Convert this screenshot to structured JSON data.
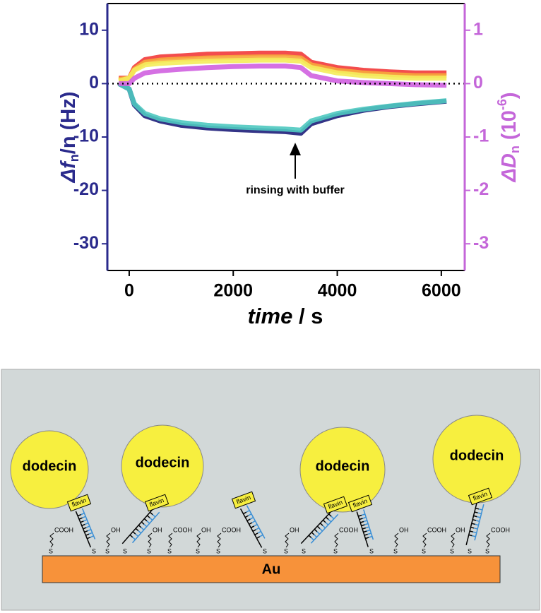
{
  "chart_data": {
    "type": "line",
    "xlabel": {
      "main": "time",
      "rest": " / s"
    },
    "ylabel": {
      "main": "Δf",
      "sub": "n",
      "rest": "/n (Hz)"
    },
    "y2label": {
      "main": "ΔD",
      "sub": "n",
      "open": " (10",
      "sup": "-6",
      "close": ")"
    },
    "annotation": "rinsing with buffer",
    "xlim": [
      -420,
      6450
    ],
    "xticks": [
      0,
      2000,
      4000,
      6000
    ],
    "ylim": [
      -35,
      15
    ],
    "yticks": [
      -30,
      -20,
      -10,
      0,
      10
    ],
    "y2lim": [
      -3.5,
      1.5
    ],
    "y2ticks": [
      -3,
      -2,
      -1,
      0,
      1
    ],
    "axis_color": "#2a2a8c",
    "axis2_color": "#c466d9",
    "reference_line": 0,
    "x": [
      -200,
      0,
      100,
      300,
      600,
      1000,
      1500,
      2000,
      2500,
      3000,
      3300,
      3500,
      4000,
      4500,
      5000,
      5500,
      6100
    ],
    "series": [
      {
        "color": "#1e1e7a",
        "values": [
          0,
          -1,
          -4,
          -6,
          -7,
          -7.8,
          -8.3,
          -8.6,
          -8.8,
          -9,
          -9.3,
          -7.5,
          -6,
          -5,
          -4.3,
          -3.8,
          -3.3
        ]
      },
      {
        "color": "#4fc9c0",
        "values": [
          0,
          -1,
          -3.8,
          -5.6,
          -6.6,
          -7.3,
          -7.8,
          -8.1,
          -8.3,
          -8.5,
          -8.7,
          -7,
          -5.6,
          -4.8,
          -4.2,
          -3.7,
          -3.2
        ]
      },
      {
        "color": "#f23a3a",
        "axis": "y2",
        "values": [
          0.1,
          0.1,
          0.3,
          0.45,
          0.5,
          0.52,
          0.55,
          0.56,
          0.57,
          0.57,
          0.55,
          0.4,
          0.3,
          0.25,
          0.22,
          0.2,
          0.2
        ]
      },
      {
        "color": "#f7a93c",
        "axis": "y2",
        "values": [
          0.08,
          0.1,
          0.27,
          0.4,
          0.44,
          0.46,
          0.48,
          0.49,
          0.5,
          0.5,
          0.48,
          0.35,
          0.25,
          0.2,
          0.17,
          0.15,
          0.15
        ]
      },
      {
        "color": "#f4ec5a",
        "axis": "y2",
        "values": [
          0.05,
          0.1,
          0.25,
          0.35,
          0.38,
          0.4,
          0.42,
          0.43,
          0.44,
          0.44,
          0.42,
          0.3,
          0.2,
          0.15,
          0.12,
          0.1,
          0.1
        ]
      },
      {
        "color": "#d061e0",
        "axis": "y2",
        "values": [
          0,
          0,
          0.1,
          0.2,
          0.24,
          0.27,
          0.3,
          0.32,
          0.33,
          0.33,
          0.3,
          0.15,
          0.05,
          0.02,
          0,
          -0.02,
          -0.03
        ]
      }
    ]
  },
  "diagram": {
    "dodecins": [
      "dodecin",
      "dodecin",
      "dodecin",
      "dodecin"
    ],
    "flavins": [
      "flavin",
      "flavin",
      "flavin",
      "flavin",
      "flavin",
      "flavin"
    ],
    "linker_heads": [
      "COOH",
      "OH",
      "OH",
      "COOH",
      "OH",
      "COOH",
      "OH",
      "COOH",
      "OH",
      "COOH",
      "OH",
      "COOH"
    ],
    "thiol": "S",
    "substrate": "Au"
  }
}
